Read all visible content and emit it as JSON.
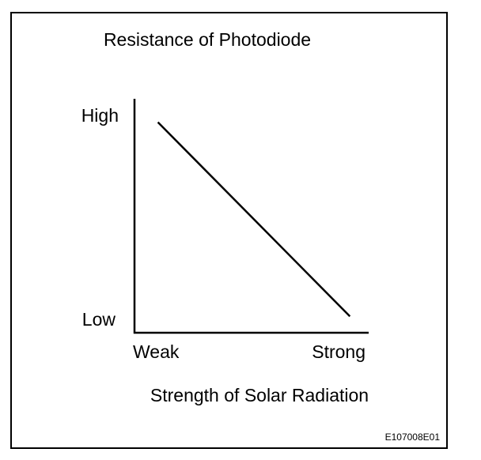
{
  "chart_data": {
    "type": "line",
    "title": "Resistance of Photodiode",
    "xlabel": "Strength of Solar Radiation",
    "x_tick_labels": [
      "Weak",
      "Strong"
    ],
    "y_tick_labels": [
      "Low",
      "High"
    ],
    "x": [
      0.1,
      0.92
    ],
    "series": [
      {
        "values": [
          0.9,
          0.07
        ]
      }
    ],
    "xlim": [
      0,
      1
    ],
    "ylim": [
      0,
      1
    ],
    "grid": false,
    "line_color": "#000000"
  },
  "reference_id": "E107008E01"
}
